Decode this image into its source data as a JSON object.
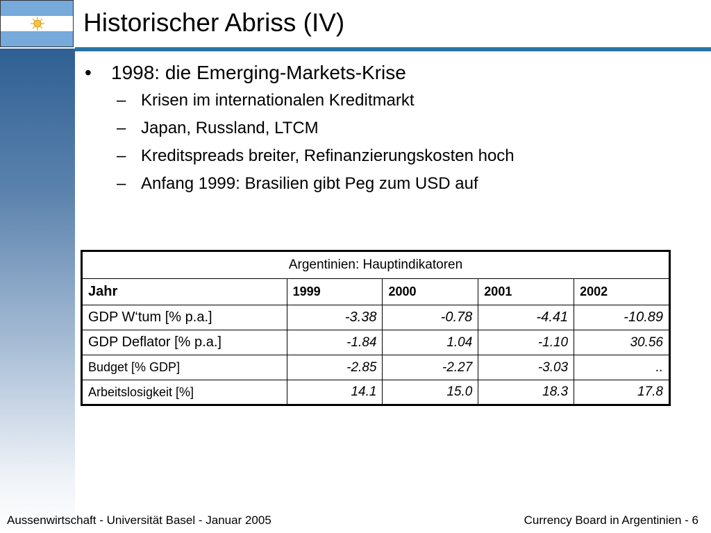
{
  "slide": {
    "title": "Historischer Abriss (IV)",
    "flag_icon": "argentina-flag-icon",
    "accent_color": "#2874a6"
  },
  "bullets": {
    "main": "1998: die Emerging-Markets-Krise",
    "subs": [
      "Krisen im internationalen Kreditmarkt",
      "Japan, Russland, LTCM",
      "Kreditspreads breiter, Refinanzierungskosten hoch",
      "Anfang 1999: Brasilien gibt Peg zum USD auf"
    ]
  },
  "table": {
    "caption": "Argentinien: Hauptindikatoren",
    "header": [
      "Jahr",
      "1999",
      "2000",
      "2001",
      "2002"
    ],
    "rows": [
      {
        "label": "GDP W‘tum [% p.a.]",
        "values": [
          "-3.38",
          "-0.78",
          "-4.41",
          "-10.89"
        ]
      },
      {
        "label": "GDP Deflator [% p.a.]",
        "values": [
          "-1.84",
          "1.04",
          "-1.10",
          "30.56"
        ]
      },
      {
        "label": "Budget [% GDP]",
        "values": [
          "-2.85",
          "-2.27",
          "-3.03",
          ".."
        ]
      },
      {
        "label": "Arbeitslosigkeit [%]",
        "values": [
          "14.1",
          "15.0",
          "18.3",
          "17.8"
        ]
      }
    ]
  },
  "footer": {
    "left": "Aussenwirtschaft - Universität Basel - Januar 2005",
    "right": "Currency Board in Argentinien - 6"
  }
}
